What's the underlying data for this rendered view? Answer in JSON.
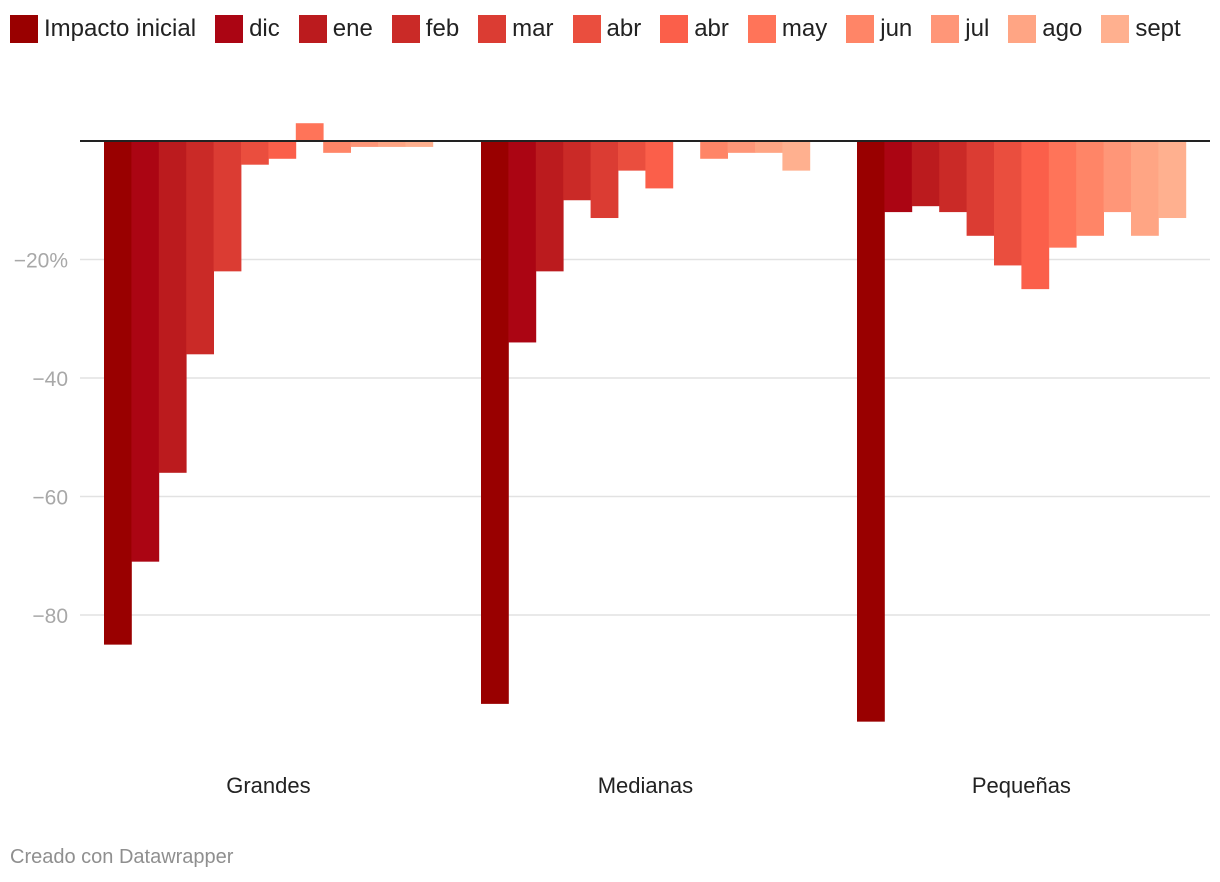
{
  "chart_data": {
    "type": "bar",
    "categories": [
      "Grandes",
      "Medianas",
      "Pequeñas"
    ],
    "series": [
      {
        "name": "Impacto inicial",
        "color": "#990000",
        "values": [
          -85,
          -95,
          -98
        ]
      },
      {
        "name": "dic",
        "color": "#ab0513",
        "values": [
          -71,
          -34,
          -12
        ]
      },
      {
        "name": "ene",
        "color": "#bb1b1e",
        "values": [
          -56,
          -22,
          -11
        ]
      },
      {
        "name": "feb",
        "color": "#ca2a27",
        "values": [
          -36,
          -10,
          -12
        ]
      },
      {
        "name": "mar",
        "color": "#db3c33",
        "values": [
          -22,
          -13,
          -16
        ]
      },
      {
        "name": "abr",
        "color": "#ea4e3e",
        "values": [
          -4,
          -5,
          -21
        ]
      },
      {
        "name": "abr",
        "color": "#fb5f4a",
        "values": [
          -3,
          -8,
          -25
        ]
      },
      {
        "name": "may",
        "color": "#ff7459",
        "values": [
          3,
          0,
          -18
        ]
      },
      {
        "name": "jun",
        "color": "#ff8567",
        "values": [
          -2,
          -3,
          -16
        ]
      },
      {
        "name": "jul",
        "color": "#ff9678",
        "values": [
          -1,
          -2,
          -12
        ]
      },
      {
        "name": "ago",
        "color": "#ffa584",
        "values": [
          -1,
          -2,
          -16
        ]
      },
      {
        "name": "sept",
        "color": "#ffb08f",
        "values": [
          -1,
          -5,
          -13
        ]
      }
    ],
    "yticks": [
      {
        "value": -20,
        "label": "−20%"
      },
      {
        "value": -40,
        "label": "−40"
      },
      {
        "value": -60,
        "label": "−60"
      },
      {
        "value": -80,
        "label": "−80"
      }
    ],
    "ylim": [
      -100,
      3
    ],
    "title": "",
    "xlabel": "",
    "ylabel": "",
    "grid": true,
    "legend": "top"
  },
  "footer": {
    "credit": "Creado con Datawrapper"
  }
}
